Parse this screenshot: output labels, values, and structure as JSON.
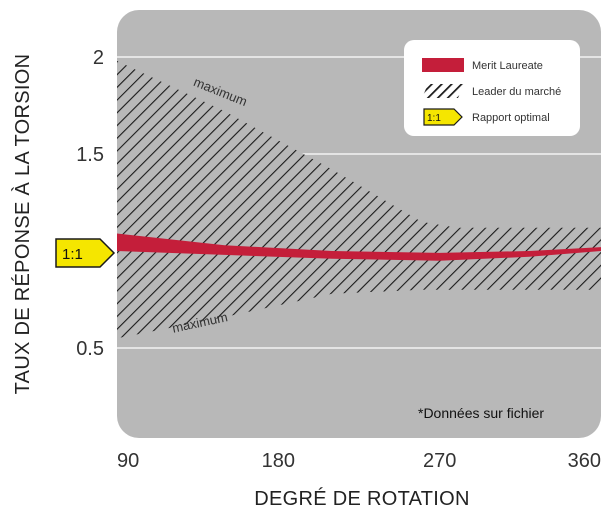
{
  "chart_data": {
    "type": "area",
    "title": "",
    "xlabel": "DEGRÉ DE ROTATION",
    "ylabel": "TAUX DE RÉPONSE À LA TORSION",
    "xlim": [
      90,
      360
    ],
    "ylim": [
      0.0,
      2.25
    ],
    "x_ticks": [
      "90",
      "180",
      "270",
      "360"
    ],
    "y_ticks": [
      "0.5",
      "1.5",
      "2"
    ],
    "y_tick_values": [
      0.5,
      1.5,
      2.0
    ],
    "grid": "horizontal",
    "legend_position": "top-right",
    "background_color": "#b8b8b8",
    "series": [
      {
        "name": "Merit Laureate",
        "color": "#c41e3a",
        "x": [
          90,
          150,
          210,
          270,
          320,
          360
        ],
        "upper": [
          1.09,
          1.03,
          1.0,
          0.99,
          1.0,
          1.02
        ],
        "lower": [
          1.0,
          0.98,
          0.96,
          0.95,
          0.97,
          1.0
        ]
      },
      {
        "name": "Leader du marché",
        "color": "#1a1a1a",
        "pattern": "diagonal-hatch",
        "x": [
          90,
          150,
          210,
          260,
          280,
          360
        ],
        "upper": [
          1.98,
          1.72,
          1.42,
          1.15,
          1.12,
          1.12
        ],
        "lower": [
          0.55,
          0.66,
          0.78,
          0.8,
          0.8,
          0.8
        ]
      }
    ],
    "reference_line": {
      "name": "Rapport optimal",
      "value": 1.0,
      "label": "1:1",
      "color": "#f5e600"
    },
    "annotations": [
      {
        "text": "maximum",
        "x": 120,
        "y": 1.8
      },
      {
        "text": "maximum",
        "x": 120,
        "y": 0.64
      }
    ],
    "footnote": "*Données sur fichier"
  }
}
